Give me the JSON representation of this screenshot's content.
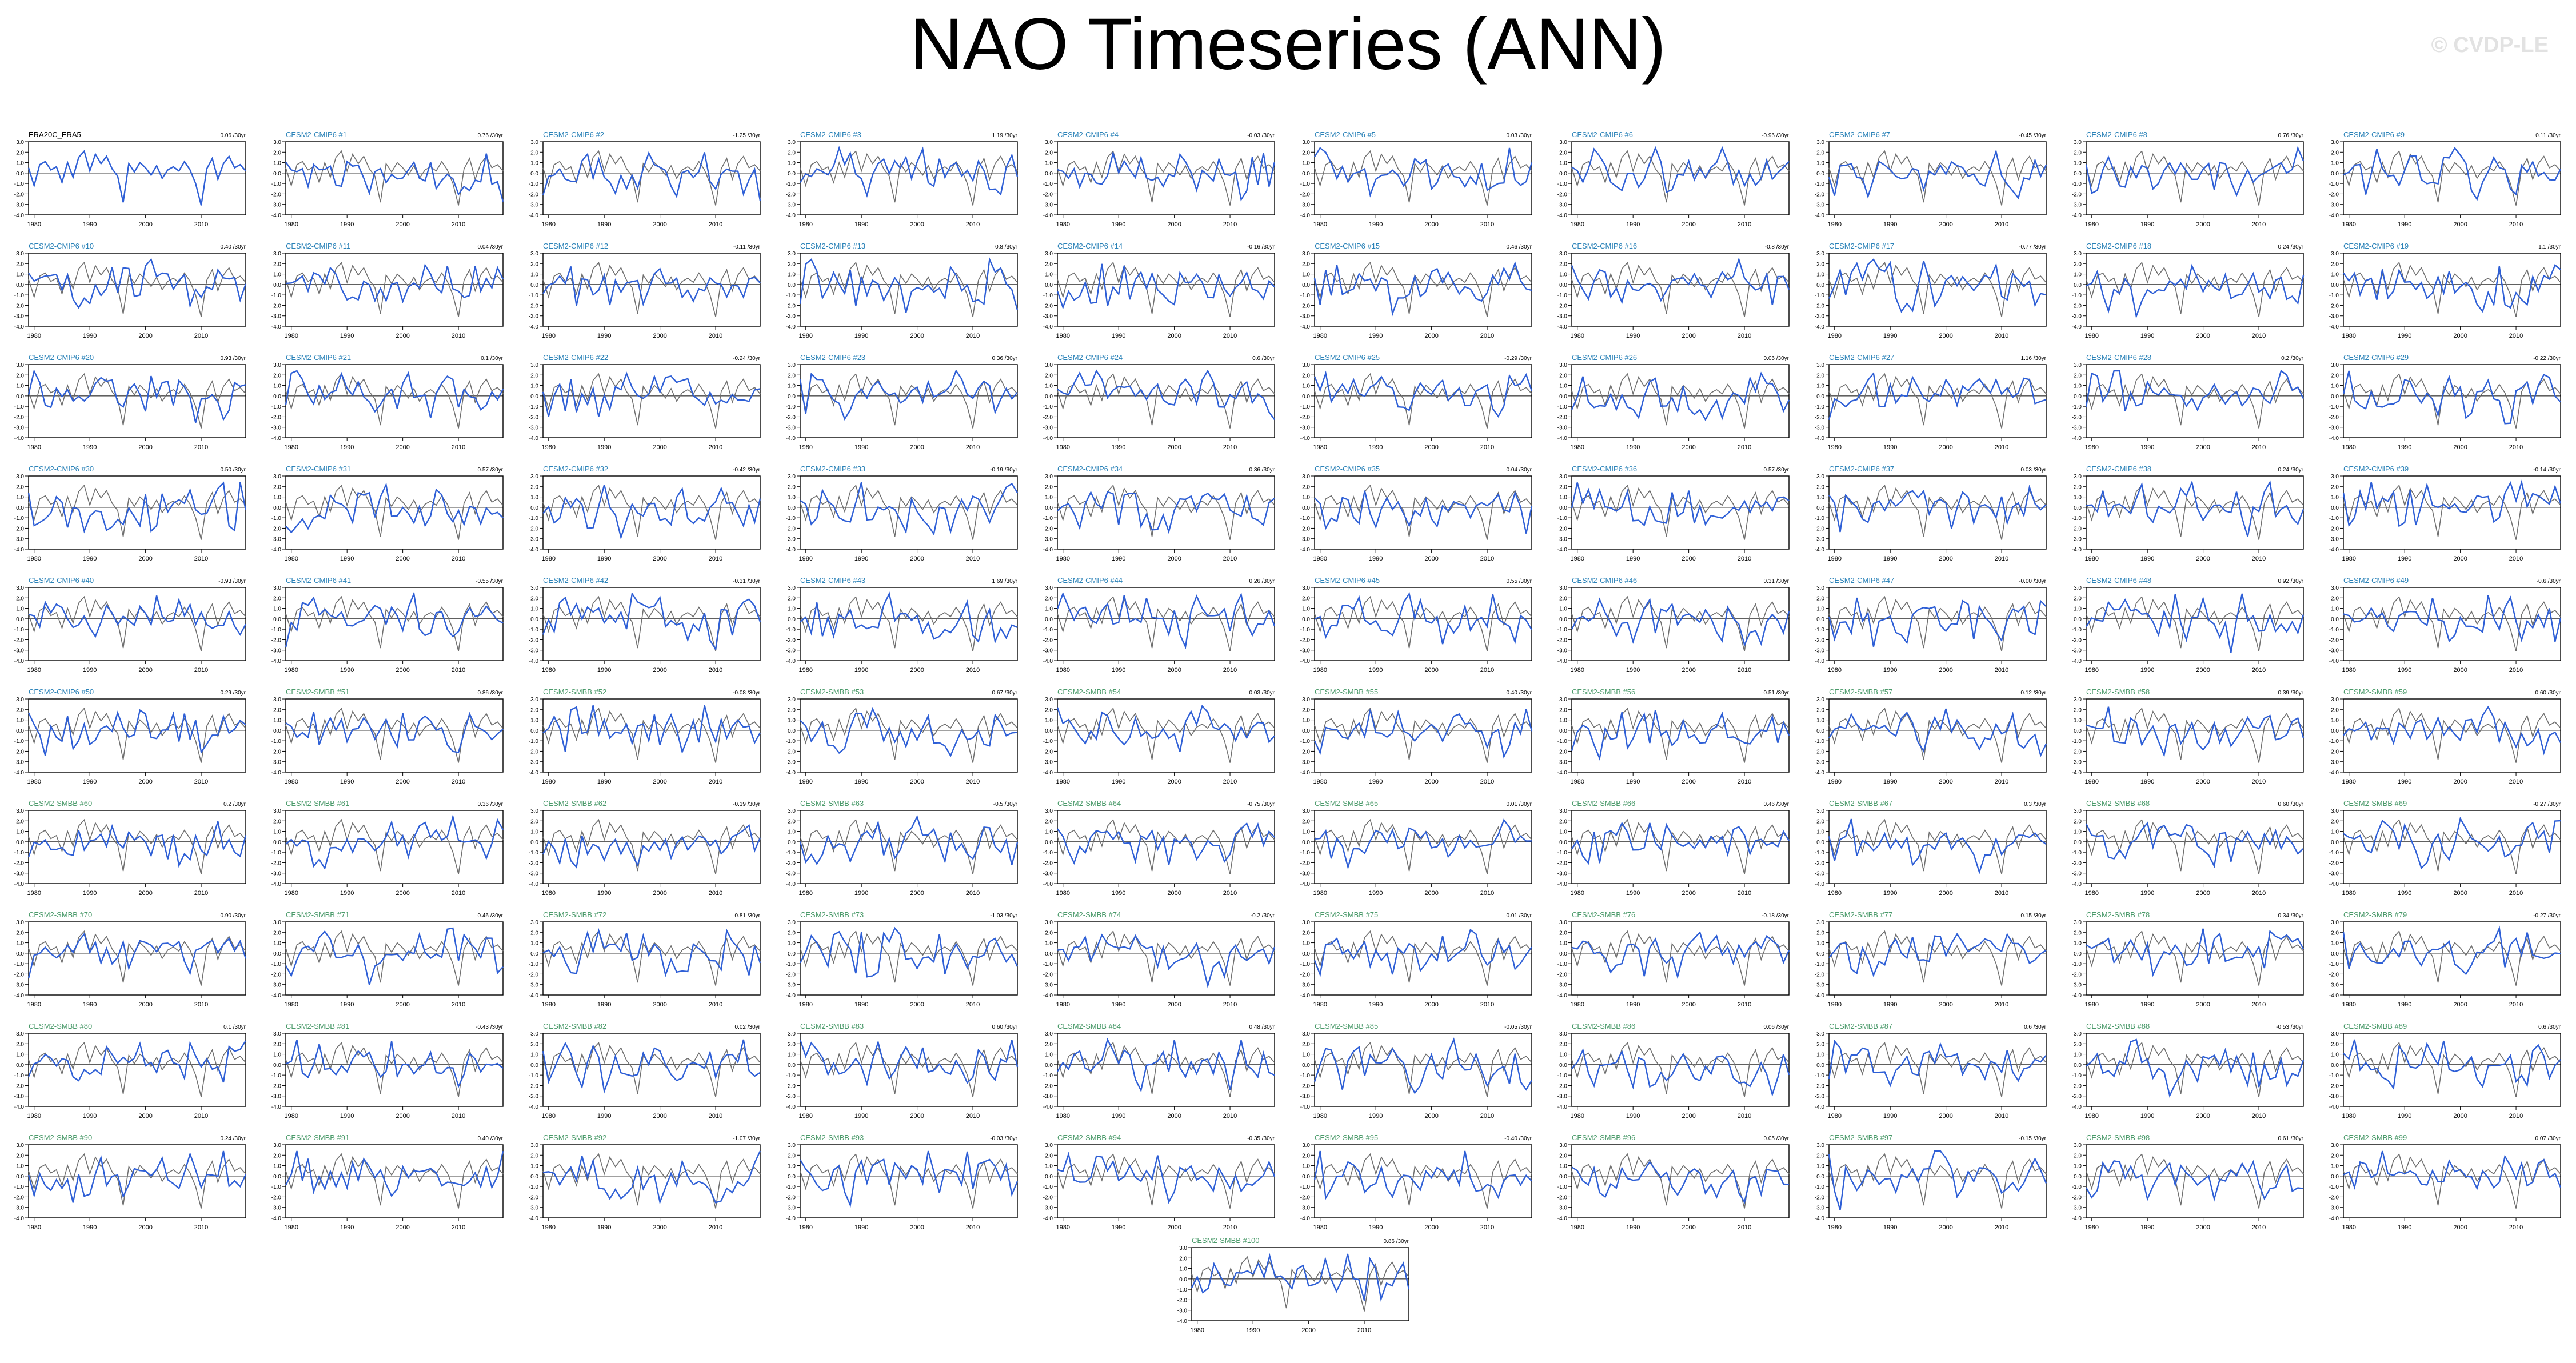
{
  "title": "NAO Timeseries (ANN)",
  "watermark": "© CVDP-LE",
  "colors": {
    "obs": "#000000",
    "ensemble": "#2e5fd6",
    "obs_overlay": "#6f6f6f",
    "label_cmip6": "#2a82b8",
    "label_smbb": "#4a9a6a",
    "zero_line": "#000000"
  },
  "chart_data": {
    "type": "line",
    "xlabel": "",
    "ylabel": "",
    "xlim": [
      1979,
      2018
    ],
    "ylim": [
      -4.0,
      3.0
    ],
    "x_ticks": [
      1980,
      1990,
      2000,
      2010
    ],
    "y_ticks": [
      "3.0",
      "2.0",
      "1.0",
      "0.0",
      "-1.0",
      "-2.0",
      "-3.0",
      "-4.0"
    ],
    "obs_panel": {
      "name": "ERA20C_ERA5",
      "trend": "0.06 /30yr",
      "x_start": 1979,
      "values": [
        0.5,
        -1.2,
        0.8,
        1.1,
        0.3,
        0.6,
        -0.9,
        1.0,
        -0.4,
        1.5,
        2.1,
        0.2,
        1.8,
        0.9,
        1.6,
        0.4,
        -0.3,
        -2.8,
        0.9,
        0.1,
        1.0,
        0.5,
        -0.2,
        0.7,
        -0.5,
        0.3,
        0.6,
        0.2,
        1.1,
        0.3,
        -1.0,
        -3.1,
        0.4,
        1.4,
        -0.6,
        0.9,
        1.6,
        0.5,
        0.8,
        0.2
      ]
    },
    "panels": [
      {
        "label": "CESM2-CMIP6 #1",
        "trend": "0.76 /30yr"
      },
      {
        "label": "CESM2-CMIP6 #2",
        "trend": "-1.25 /30yr"
      },
      {
        "label": "CESM2-CMIP6 #3",
        "trend": "1.19 /30yr"
      },
      {
        "label": "CESM2-CMIP6 #4",
        "trend": "-0.03 /30yr"
      },
      {
        "label": "CESM2-CMIP6 #5",
        "trend": "0.03 /30yr"
      },
      {
        "label": "CESM2-CMIP6 #6",
        "trend": "-0.96 /30yr"
      },
      {
        "label": "CESM2-CMIP6 #7",
        "trend": "-0.45 /30yr"
      },
      {
        "label": "CESM2-CMIP6 #8",
        "trend": "0.76 /30yr"
      },
      {
        "label": "CESM2-CMIP6 #9",
        "trend": "0.11 /30yr"
      },
      {
        "label": "CESM2-CMIP6 #10",
        "trend": "0.40 /30yr"
      },
      {
        "label": "CESM2-CMIP6 #11",
        "trend": "0.04 /30yr"
      },
      {
        "label": "CESM2-CMIP6 #12",
        "trend": "-0.11 /30yr"
      },
      {
        "label": "CESM2-CMIP6 #13",
        "trend": "0.8 /30yr"
      },
      {
        "label": "CESM2-CMIP6 #14",
        "trend": "-0.16 /30yr"
      },
      {
        "label": "CESM2-CMIP6 #15",
        "trend": "0.46 /30yr"
      },
      {
        "label": "CESM2-CMIP6 #16",
        "trend": "-0.8 /30yr"
      },
      {
        "label": "CESM2-CMIP6 #17",
        "trend": "-0.77 /30yr"
      },
      {
        "label": "CESM2-CMIP6 #18",
        "trend": "0.24 /30yr"
      },
      {
        "label": "CESM2-CMIP6 #19",
        "trend": "1.1 /30yr"
      },
      {
        "label": "CESM2-CMIP6 #20",
        "trend": "0.93 /30yr"
      },
      {
        "label": "CESM2-CMIP6 #21",
        "trend": "0.1 /30yr"
      },
      {
        "label": "CESM2-CMIP6 #22",
        "trend": "-0.24 /30yr"
      },
      {
        "label": "CESM2-CMIP6 #23",
        "trend": "0.36 /30yr"
      },
      {
        "label": "CESM2-CMIP6 #24",
        "trend": "0.6 /30yr"
      },
      {
        "label": "CESM2-CMIP6 #25",
        "trend": "-0.29 /30yr"
      },
      {
        "label": "CESM2-CMIP6 #26",
        "trend": "0.06 /30yr"
      },
      {
        "label": "CESM2-CMIP6 #27",
        "trend": "1.16 /30yr"
      },
      {
        "label": "CESM2-CMIP6 #28",
        "trend": "0.2 /30yr"
      },
      {
        "label": "CESM2-CMIP6 #29",
        "trend": "-0.22 /30yr"
      },
      {
        "label": "CESM2-CMIP6 #30",
        "trend": "0.50 /30yr"
      },
      {
        "label": "CESM2-CMIP6 #31",
        "trend": "0.57 /30yr"
      },
      {
        "label": "CESM2-CMIP6 #32",
        "trend": "-0.42 /30yr"
      },
      {
        "label": "CESM2-CMIP6 #33",
        "trend": "-0.19 /30yr"
      },
      {
        "label": "CESM2-CMIP6 #34",
        "trend": "0.36 /30yr"
      },
      {
        "label": "CESM2-CMIP6 #35",
        "trend": "0.04 /30yr"
      },
      {
        "label": "CESM2-CMIP6 #36",
        "trend": "0.57 /30yr"
      },
      {
        "label": "CESM2-CMIP6 #37",
        "trend": "0.03 /30yr"
      },
      {
        "label": "CESM2-CMIP6 #38",
        "trend": "0.24 /30yr"
      },
      {
        "label": "CESM2-CMIP6 #39",
        "trend": "-0.14 /30yr"
      },
      {
        "label": "CESM2-CMIP6 #40",
        "trend": "-0.93 /30yr"
      },
      {
        "label": "CESM2-CMIP6 #41",
        "trend": "-0.55 /30yr"
      },
      {
        "label": "CESM2-CMIP6 #42",
        "trend": "-0.31 /30yr"
      },
      {
        "label": "CESM2-CMIP6 #43",
        "trend": "1.69 /30yr"
      },
      {
        "label": "CESM2-CMIP6 #44",
        "trend": "0.26 /30yr"
      },
      {
        "label": "CESM2-CMIP6 #45",
        "trend": "0.55 /30yr"
      },
      {
        "label": "CESM2-CMIP6 #46",
        "trend": "0.31 /30yr"
      },
      {
        "label": "CESM2-CMIP6 #47",
        "trend": "-0.00 /30yr"
      },
      {
        "label": "CESM2-CMIP6 #48",
        "trend": "0.92 /30yr"
      },
      {
        "label": "CESM2-CMIP6 #49",
        "trend": "-0.6 /30yr"
      },
      {
        "label": "CESM2-CMIP6 #50",
        "trend": "0.29 /30yr"
      },
      {
        "label": "CESM2-SMBB #51",
        "trend": "0.86 /30yr"
      },
      {
        "label": "CESM2-SMBB #52",
        "trend": "-0.08 /30yr"
      },
      {
        "label": "CESM2-SMBB #53",
        "trend": "0.67 /30yr"
      },
      {
        "label": "CESM2-SMBB #54",
        "trend": "0.03 /30yr"
      },
      {
        "label": "CESM2-SMBB #55",
        "trend": "0.40 /30yr"
      },
      {
        "label": "CESM2-SMBB #56",
        "trend": "0.51 /30yr"
      },
      {
        "label": "CESM2-SMBB #57",
        "trend": "0.12 /30yr"
      },
      {
        "label": "CESM2-SMBB #58",
        "trend": "0.39 /30yr"
      },
      {
        "label": "CESM2-SMBB #59",
        "trend": "0.60 /30yr"
      },
      {
        "label": "CESM2-SMBB #60",
        "trend": "0.2 /30yr"
      },
      {
        "label": "CESM2-SMBB #61",
        "trend": "0.36 /30yr"
      },
      {
        "label": "CESM2-SMBB #62",
        "trend": "-0.19 /30yr"
      },
      {
        "label": "CESM2-SMBB #63",
        "trend": "-0.5 /30yr"
      },
      {
        "label": "CESM2-SMBB #64",
        "trend": "-0.75 /30yr"
      },
      {
        "label": "CESM2-SMBB #65",
        "trend": "0.01 /30yr"
      },
      {
        "label": "CESM2-SMBB #66",
        "trend": "0.46 /30yr"
      },
      {
        "label": "CESM2-SMBB #67",
        "trend": "0.3 /30yr"
      },
      {
        "label": "CESM2-SMBB #68",
        "trend": "0.60 /30yr"
      },
      {
        "label": "CESM2-SMBB #69",
        "trend": "-0.27 /30yr"
      },
      {
        "label": "CESM2-SMBB #70",
        "trend": "0.90 /30yr"
      },
      {
        "label": "CESM2-SMBB #71",
        "trend": "0.46 /30yr"
      },
      {
        "label": "CESM2-SMBB #72",
        "trend": "0.81 /30yr"
      },
      {
        "label": "CESM2-SMBB #73",
        "trend": "-1.03 /30yr"
      },
      {
        "label": "CESM2-SMBB #74",
        "trend": "-0.2 /30yr"
      },
      {
        "label": "CESM2-SMBB #75",
        "trend": "0.01 /30yr"
      },
      {
        "label": "CESM2-SMBB #76",
        "trend": "-0.18 /30yr"
      },
      {
        "label": "CESM2-SMBB #77",
        "trend": "0.15 /30yr"
      },
      {
        "label": "CESM2-SMBB #78",
        "trend": "0.34 /30yr"
      },
      {
        "label": "CESM2-SMBB #79",
        "trend": "-0.27 /30yr"
      },
      {
        "label": "CESM2-SMBB #80",
        "trend": "0.1 /30yr"
      },
      {
        "label": "CESM2-SMBB #81",
        "trend": "-0.43 /30yr"
      },
      {
        "label": "CESM2-SMBB #82",
        "trend": "0.02 /30yr"
      },
      {
        "label": "CESM2-SMBB #83",
        "trend": "0.60 /30yr"
      },
      {
        "label": "CESM2-SMBB #84",
        "trend": "0.48 /30yr"
      },
      {
        "label": "CESM2-SMBB #85",
        "trend": "-0.05 /30yr"
      },
      {
        "label": "CESM2-SMBB #86",
        "trend": "0.06 /30yr"
      },
      {
        "label": "CESM2-SMBB #87",
        "trend": "0.6 /30yr"
      },
      {
        "label": "CESM2-SMBB #88",
        "trend": "-0.53 /30yr"
      },
      {
        "label": "CESM2-SMBB #89",
        "trend": "0.6 /30yr"
      },
      {
        "label": "CESM2-SMBB #90",
        "trend": "0.24 /30yr"
      },
      {
        "label": "CESM2-SMBB #91",
        "trend": "0.40 /30yr"
      },
      {
        "label": "CESM2-SMBB #92",
        "trend": "-1.07 /30yr"
      },
      {
        "label": "CESM2-SMBB #93",
        "trend": "-0.03 /30yr"
      },
      {
        "label": "CESM2-SMBB #94",
        "trend": "-0.35 /30yr"
      },
      {
        "label": "CESM2-SMBB #95",
        "trend": "-0.40 /30yr"
      },
      {
        "label": "CESM2-SMBB #96",
        "trend": "0.05 /30yr"
      },
      {
        "label": "CESM2-SMBB #97",
        "trend": "-0.15 /30yr"
      },
      {
        "label": "CESM2-SMBB #98",
        "trend": "0.61 /30yr"
      },
      {
        "label": "CESM2-SMBB #99",
        "trend": "0.07 /30yr"
      },
      {
        "label": "CESM2-SMBB #100",
        "trend": "0.86 /30yr"
      }
    ]
  }
}
